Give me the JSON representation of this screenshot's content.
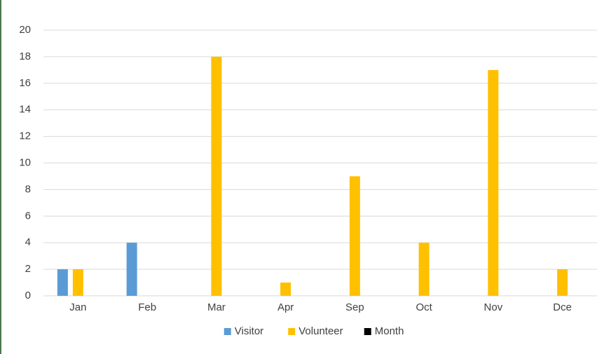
{
  "chart_data": {
    "type": "bar",
    "categories": [
      "Jan",
      "Feb",
      "Mar",
      "Apr",
      "Sep",
      "Oct",
      "Nov",
      "Dce"
    ],
    "series": [
      {
        "name": "Visitor",
        "color": "#5b9bd5",
        "values": [
          2,
          4,
          null,
          null,
          null,
          null,
          null,
          null
        ]
      },
      {
        "name": "Volunteer",
        "color": "#ffc000",
        "values": [
          2,
          null,
          18,
          1,
          9,
          4,
          17,
          2
        ]
      },
      {
        "name": "Month",
        "color": "#000000",
        "values": [
          null,
          null,
          null,
          null,
          null,
          null,
          null,
          null
        ]
      }
    ],
    "ylim": [
      0,
      20
    ],
    "yticks": [
      0,
      2,
      4,
      6,
      8,
      10,
      12,
      14,
      16,
      18,
      20
    ],
    "grid": true,
    "legend": "bottom"
  }
}
